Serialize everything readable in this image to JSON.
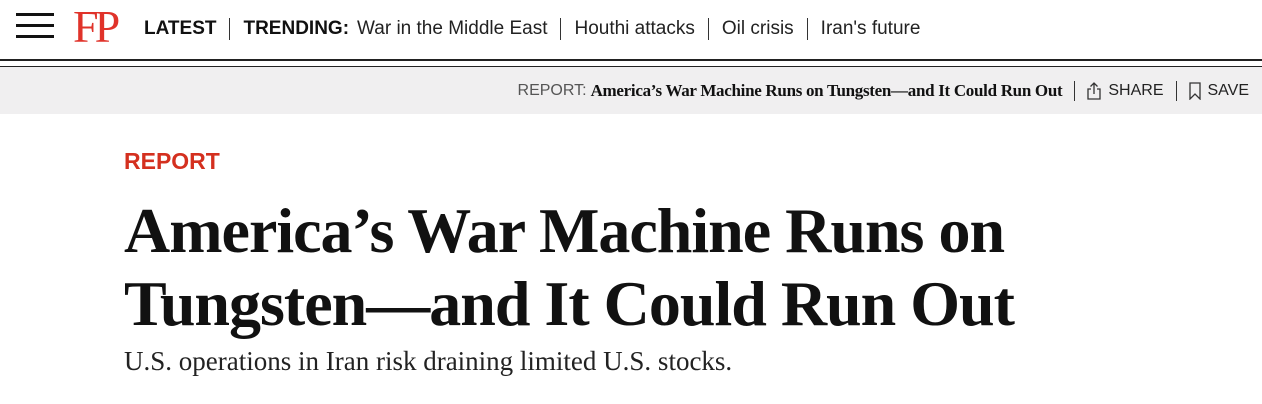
{
  "header": {
    "logo": "FP",
    "latest": "LATEST",
    "trending_label": "TRENDING:",
    "trending": [
      "War in the Middle East",
      "Houthi attacks",
      "Oil crisis",
      "Iran's future"
    ]
  },
  "sticky": {
    "label": "REPORT:",
    "title": "America’s War Machine Runs on Tungsten—and It Could Run Out",
    "share": "SHARE",
    "save": "SAVE"
  },
  "article": {
    "kicker": "REPORT",
    "headline": "America’s War Machine Runs on Tungsten—and It Could Run Out",
    "dek": "U.S. operations in Iran risk draining limited U.S. stocks."
  },
  "colors": {
    "brand": "#e0332a",
    "kicker": "#d4301f",
    "bar_bg": "#f0eff0"
  }
}
